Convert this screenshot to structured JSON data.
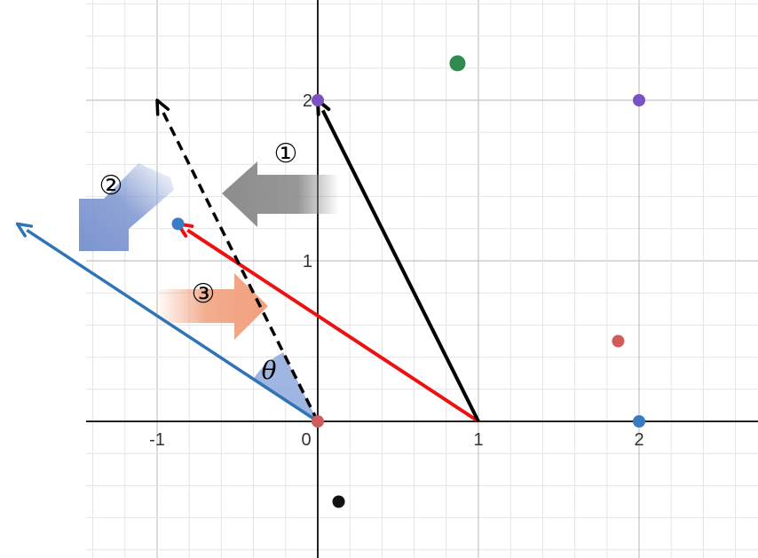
{
  "axes": {
    "x_ticks": [
      {
        "value": -1,
        "label": "-1"
      },
      {
        "value": 0,
        "label": "0"
      },
      {
        "value": 1,
        "label": "1"
      },
      {
        "value": 2,
        "label": "2"
      }
    ],
    "y_ticks": [
      {
        "value": 1,
        "label": "1"
      },
      {
        "value": 2,
        "label": "2"
      }
    ]
  },
  "colors": {
    "grid_minor": "#e4e4e4",
    "grid_major": "#c4c4c4",
    "axis": "#222222",
    "black_vector": "#000000",
    "red_vector": "#ee1111",
    "blue_vector": "#2f74b5",
    "point_red": "#cf5c5c",
    "point_blue": "#3a7cc3",
    "point_purple": "#7a52c1",
    "point_green": "#2e8b4e",
    "point_black": "#111111",
    "step1_arrow": "#8c8c8c",
    "step2_arrow": "#7b94cf",
    "step3_arrow": "#f19f7c",
    "angle_fill": "#8ea9dd"
  },
  "vectors": {
    "black": {
      "from": [
        1,
        0
      ],
      "to": [
        0,
        2
      ]
    },
    "dashed_black": {
      "from": [
        0,
        0
      ],
      "to": [
        -1,
        2
      ]
    },
    "red": {
      "from": [
        1,
        0
      ],
      "to": [
        -0.87,
        1.23
      ]
    },
    "blue": {
      "from": [
        0,
        0
      ],
      "to": [
        -1.87,
        1.23
      ]
    }
  },
  "points": [
    {
      "name": "point-red-origin",
      "x": 0,
      "y": 0,
      "color": "point_red"
    },
    {
      "name": "point-purple-0-2",
      "x": 0,
      "y": 2,
      "color": "point_purple"
    },
    {
      "name": "point-purple-2-2",
      "x": 2,
      "y": 2,
      "color": "point_purple"
    },
    {
      "name": "point-green",
      "x": 0.87,
      "y": 2.23,
      "color": "point_green"
    },
    {
      "name": "point-blue-left",
      "x": -0.87,
      "y": 1.23,
      "color": "point_blue"
    },
    {
      "name": "point-red-right",
      "x": 1.87,
      "y": 0.5,
      "color": "point_red"
    },
    {
      "name": "point-blue-2-0",
      "x": 2,
      "y": 0,
      "color": "point_blue"
    },
    {
      "name": "point-black",
      "x": 0.13,
      "y": -0.5,
      "color": "point_black"
    }
  ],
  "steps": [
    {
      "name": "step-1-label",
      "label": "①"
    },
    {
      "name": "step-2-label",
      "label": "②"
    },
    {
      "name": "step-3-label",
      "label": "③"
    }
  ],
  "angle_label": "θ"
}
